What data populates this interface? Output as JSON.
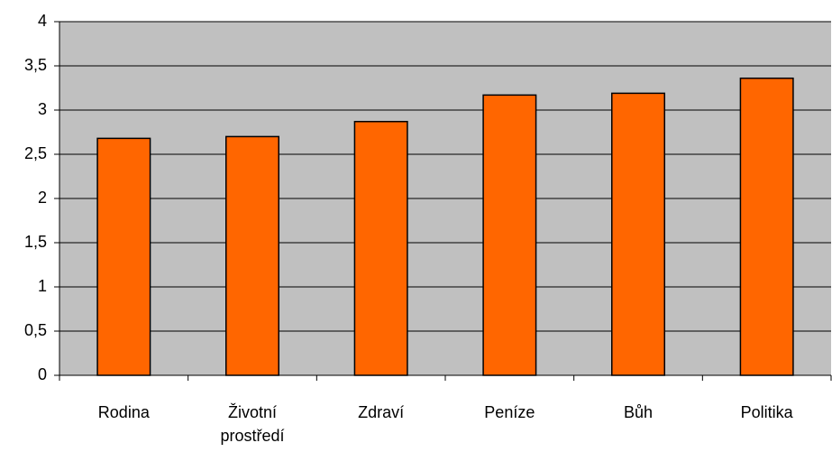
{
  "chart_data": {
    "type": "bar",
    "categories": [
      "Rodina",
      "Životní prostředí",
      "Zdraví",
      "Peníze",
      "Bůh",
      "Politika"
    ],
    "values": [
      2.68,
      2.7,
      2.87,
      3.17,
      3.19,
      3.36
    ],
    "color": "#ff6600",
    "ylim": [
      0,
      4
    ],
    "yticks": [
      0,
      {
        "value": 0.5,
        "label": "0,5"
      },
      1,
      {
        "value": 1.5,
        "label": "1,5"
      },
      2,
      {
        "value": 2.5,
        "label": "2,5"
      },
      3,
      {
        "value": 3.5,
        "label": "3,5"
      },
      4
    ],
    "grid": true
  }
}
